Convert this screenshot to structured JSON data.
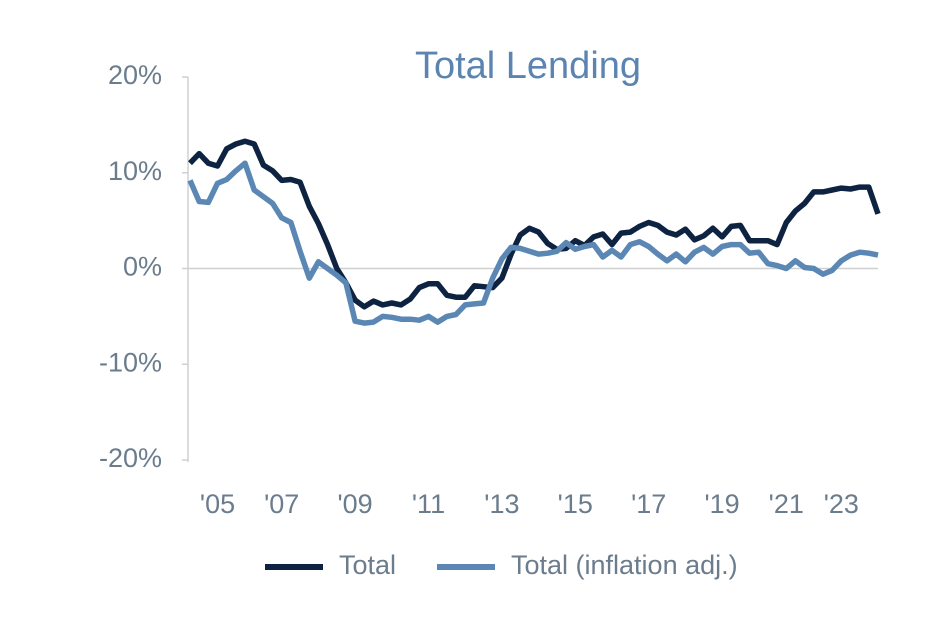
{
  "chart_data": {
    "type": "line",
    "title": "Total Lending",
    "categories": [
      null,
      null,
      null,
      "'05",
      null,
      null,
      null,
      null,
      null,
      null,
      "'07",
      null,
      null,
      null,
      null,
      null,
      null,
      null,
      "'09",
      null,
      null,
      null,
      null,
      null,
      null,
      null,
      "'11",
      null,
      null,
      null,
      null,
      null,
      null,
      null,
      "'13",
      null,
      null,
      null,
      null,
      null,
      null,
      null,
      "'15",
      null,
      null,
      null,
      null,
      null,
      null,
      null,
      "'17",
      null,
      null,
      null,
      null,
      null,
      null,
      null,
      "'19",
      null,
      null,
      null,
      null,
      null,
      null,
      "'21",
      null,
      null,
      null,
      null,
      null,
      "'23",
      null,
      null,
      null,
      null
    ],
    "series": [
      {
        "name": "Total",
        "color": "#0e2341",
        "values": [
          11,
          12,
          11,
          10.7,
          12.5,
          13,
          13.3,
          13,
          10.8,
          10.2,
          9.2,
          9.3,
          9,
          6.5,
          4.7,
          2.5,
          0,
          -1.5,
          -3.3,
          -4,
          -3.4,
          -3.8,
          -3.6,
          -3.8,
          -3.2,
          -2,
          -1.6,
          -1.6,
          -2.8,
          -3,
          -3,
          -1.8,
          -1.9,
          -2,
          -1,
          1.5,
          3.5,
          4.2,
          3.8,
          2.6,
          2,
          2.1,
          2.9,
          2.4,
          3.3,
          3.6,
          2.5,
          3.7,
          3.8,
          4.4,
          4.8,
          4.5,
          3.8,
          3.5,
          4.1,
          3,
          3.4,
          4.2,
          3.3,
          4.4,
          4.5,
          2.9,
          2.9,
          2.9,
          2.5,
          4.8,
          6,
          6.8,
          8,
          8,
          8.2,
          8.4,
          8.3,
          8.5,
          8.5,
          5.7
        ]
      },
      {
        "name": "Total (inflation adj.)",
        "color": "#5b87b5",
        "values": [
          9.2,
          7,
          6.9,
          8.9,
          9.3,
          10.2,
          11,
          8.2,
          7.5,
          6.8,
          5.3,
          4.8,
          1.8,
          -1,
          0.7,
          0,
          -0.7,
          -1.5,
          -5.5,
          -5.7,
          -5.6,
          -5,
          -5.1,
          -5.3,
          -5.3,
          -5.4,
          -5,
          -5.6,
          -5,
          -4.8,
          -3.8,
          -3.7,
          -3.6,
          -1,
          1,
          2.2,
          2.1,
          1.8,
          1.5,
          1.6,
          1.8,
          2.7,
          2,
          2.3,
          2.5,
          1.2,
          1.9,
          1.2,
          2.5,
          2.8,
          2.3,
          1.5,
          0.8,
          1.5,
          0.7,
          1.7,
          2.2,
          1.5,
          2.3,
          2.5,
          2.5,
          1.6,
          1.7,
          0.5,
          0.3,
          0,
          0.8,
          0.1,
          0,
          -0.6,
          -0.2,
          0.8,
          1.4,
          1.7,
          1.6,
          1.4
        ]
      }
    ],
    "ylim": [
      -20,
      20
    ],
    "yticks": [
      {
        "value": -20,
        "label": "-20%"
      },
      {
        "value": -10,
        "label": "-10%"
      },
      {
        "value": 0,
        "label": "0%"
      },
      {
        "value": 10,
        "label": "10%"
      },
      {
        "value": 20,
        "label": "20%"
      }
    ]
  }
}
